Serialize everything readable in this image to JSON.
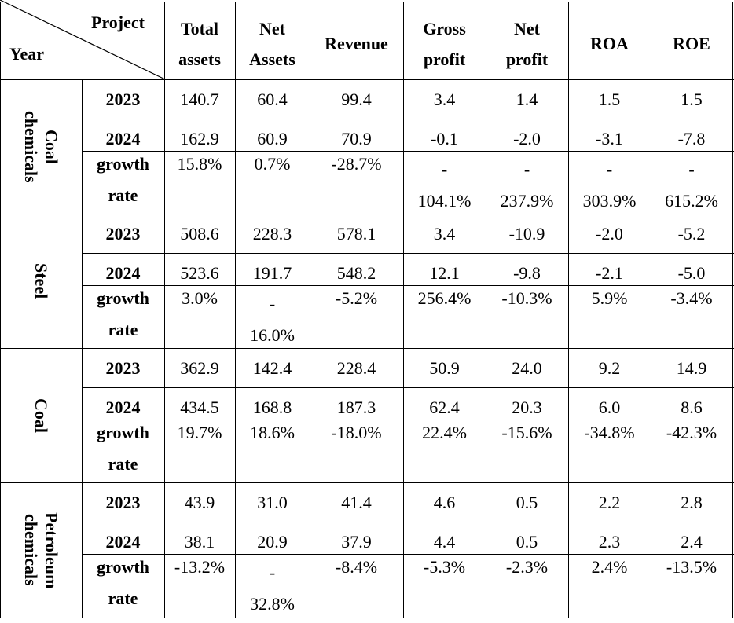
{
  "header": {
    "corner_top": "Project",
    "corner_bottom": "Year",
    "columns": [
      [
        "Total",
        "assets"
      ],
      [
        "Net",
        "Assets"
      ],
      [
        "Revenue"
      ],
      [
        "Gross",
        "profit"
      ],
      [
        "Net",
        "profit"
      ],
      [
        "ROA"
      ],
      [
        "ROE"
      ]
    ]
  },
  "groups": [
    {
      "name_lines": [
        "Coal",
        "chemicals"
      ],
      "rows": [
        {
          "label": [
            "2023"
          ],
          "values": [
            "140.7",
            "60.4",
            "99.4",
            "3.4",
            "1.4",
            "1.5",
            "1.5"
          ]
        },
        {
          "label": [
            "2024"
          ],
          "values": [
            "162.9",
            "60.9",
            "70.9",
            "-0.1",
            "-2.0",
            "-3.1",
            "-7.8"
          ]
        },
        {
          "label": [
            "growth",
            "rate"
          ],
          "values": [
            "15.8%",
            "0.7%",
            "-28.7%",
            "-104.1%",
            "-237.9%",
            "-303.9%",
            "-615.2%"
          ]
        }
      ]
    },
    {
      "name_lines": [
        "Steel"
      ],
      "rows": [
        {
          "label": [
            "2023"
          ],
          "values": [
            "508.6",
            "228.3",
            "578.1",
            "3.4",
            "-10.9",
            "-2.0",
            "-5.2"
          ]
        },
        {
          "label": [
            "2024"
          ],
          "values": [
            "523.6",
            "191.7",
            "548.2",
            "12.1",
            "-9.8",
            "-2.1",
            "-5.0"
          ]
        },
        {
          "label": [
            "growth",
            "rate"
          ],
          "values": [
            "3.0%",
            "-16.0%",
            "-5.2%",
            "256.4%",
            "-10.3%",
            "5.9%",
            "-3.4%"
          ]
        }
      ]
    },
    {
      "name_lines": [
        "Coal"
      ],
      "rows": [
        {
          "label": [
            "2023"
          ],
          "values": [
            "362.9",
            "142.4",
            "228.4",
            "50.9",
            "24.0",
            "9.2",
            "14.9"
          ]
        },
        {
          "label": [
            "2024"
          ],
          "values": [
            "434.5",
            "168.8",
            "187.3",
            "62.4",
            "20.3",
            "6.0",
            "8.6"
          ]
        },
        {
          "label": [
            "growth",
            "rate"
          ],
          "values": [
            "19.7%",
            "18.6%",
            "-18.0%",
            "22.4%",
            "-15.6%",
            "-34.8%",
            "-42.3%"
          ]
        }
      ]
    },
    {
      "name_lines": [
        "Petroleum",
        "chemicals"
      ],
      "rows": [
        {
          "label": [
            "2023"
          ],
          "values": [
            "43.9",
            "31.0",
            "41.4",
            "4.6",
            "0.5",
            "2.2",
            "2.8"
          ]
        },
        {
          "label": [
            "2024"
          ],
          "values": [
            "38.1",
            "20.9",
            "37.9",
            "4.4",
            "0.5",
            "2.3",
            "2.4"
          ]
        },
        {
          "label": [
            "growth",
            "rate"
          ],
          "values": [
            "-13.2%",
            "-32.8%",
            "-8.4%",
            "-5.3%",
            "-2.3%",
            "2.4%",
            "-13.5%"
          ]
        }
      ]
    }
  ]
}
